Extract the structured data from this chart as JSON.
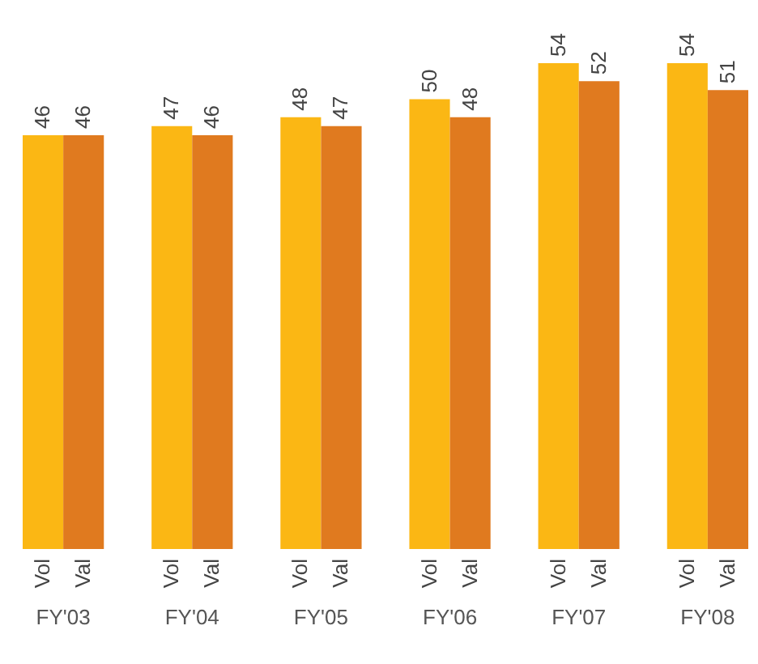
{
  "chart_data": {
    "type": "bar",
    "categories": [
      "FY'03",
      "FY'04",
      "FY'05",
      "FY'06",
      "FY'07",
      "FY'08"
    ],
    "series": [
      {
        "name": "Vol",
        "color": "#fbb714",
        "values": [
          46,
          47,
          48,
          50,
          54,
          54
        ]
      },
      {
        "name": "Val",
        "color": "#e07a1f",
        "values": [
          46,
          46,
          47,
          48,
          52,
          51
        ]
      }
    ],
    "data_labels": true,
    "grid": false,
    "legend": false,
    "tick_labels": "x"
  }
}
